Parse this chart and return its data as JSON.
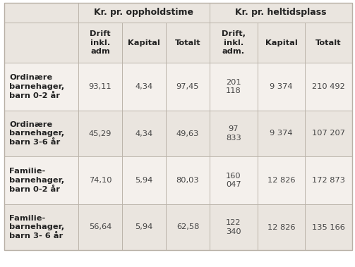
{
  "header1": "Kr. pr. oppholdstime",
  "header2": "Kr. pr. heltidsplass",
  "subheaders": [
    "Drift\ninkl.\nadm",
    "Kapital",
    "Totalt",
    "Drift,\ninkl.\nadm.",
    "Kapital",
    "Totalt"
  ],
  "rows": [
    {
      "label": "Ordinære\nbarnehager,\nbarn 0-2 år",
      "values": [
        "93,11",
        "4,34",
        "97,45",
        "201\n118",
        "9 374",
        "210 492"
      ]
    },
    {
      "label": "Ordinære\nbarnehager,\nbarn 3-6 år",
      "values": [
        "45,29",
        "4,34",
        "49,63",
        "97\n833",
        "9 374",
        "107 207"
      ]
    },
    {
      "label": "Familie-\nbarnehager,\nbarn 0-2 år",
      "values": [
        "74,10",
        "5,94",
        "80,03",
        "160\n047",
        "12 826",
        "172 873"
      ]
    },
    {
      "label": "Familie-\nbarnehager,\nbarn 3- 6 år",
      "values": [
        "56,64",
        "5,94",
        "62,58",
        "122\n340",
        "12 826",
        "135 166"
      ]
    }
  ],
  "bg_header": "#eae5df",
  "bg_row_even": "#f4f0ec",
  "bg_row_odd": "#eae5df",
  "text_dark": "#222222",
  "text_value": "#444444",
  "border": "#b8b0a6",
  "font_size_header": 9.0,
  "font_size_sub": 8.2,
  "font_size_label": 8.2,
  "font_size_val": 8.2
}
